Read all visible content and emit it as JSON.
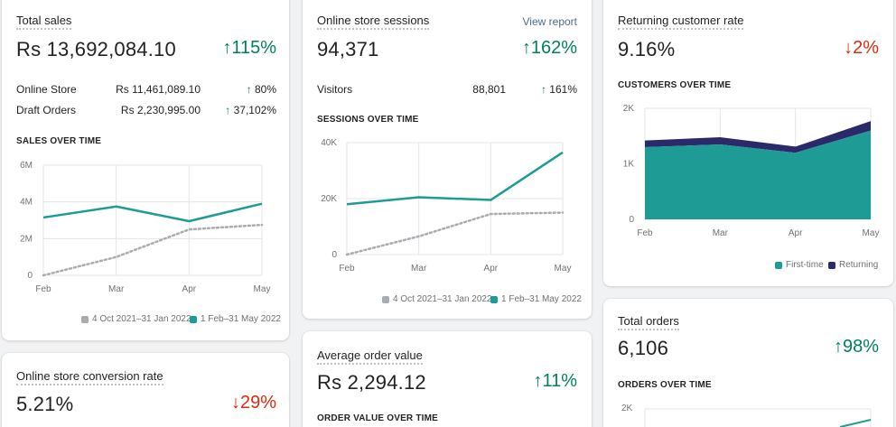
{
  "colors": {
    "accent": "#1d9b94",
    "previous": "#a7acb1",
    "returning": "#2a2a6b",
    "up": "#007f5f",
    "down": "#d72c0d"
  },
  "total_sales": {
    "title": "Total sales",
    "value": "Rs 13,692,084.10",
    "delta_arrow": "↑",
    "delta": "115%",
    "rows": [
      {
        "label": "Online Store",
        "value": "Rs 11,461,089.10",
        "arrow": "↑",
        "pct": "80%"
      },
      {
        "label": "Draft Orders",
        "value": "Rs 2,230,995.00",
        "arrow": "↑",
        "pct": "37,102%"
      }
    ],
    "chart_title": "SALES OVER TIME",
    "legend_prev": "4 Oct 2021–31 Jan 2022",
    "legend_curr": "1 Feb–31 May 2022"
  },
  "sessions": {
    "title": "Online store sessions",
    "link": "View report",
    "value": "94,371",
    "delta_arrow": "↑",
    "delta": "162%",
    "rows": [
      {
        "label": "Visitors",
        "value": "88,801",
        "arrow": "↑",
        "pct": "161%"
      }
    ],
    "chart_title": "SESSIONS OVER TIME",
    "legend_prev": "4 Oct 2021–31 Jan 2022",
    "legend_curr": "1 Feb–31 May 2022"
  },
  "returning": {
    "title": "Returning customer rate",
    "value": "9.16%",
    "delta_arrow": "↓",
    "delta": "2%",
    "chart_title": "CUSTOMERS OVER TIME",
    "legend_first": "First-time",
    "legend_returning": "Returning"
  },
  "conversion": {
    "title": "Online store conversion rate",
    "value": "5.21%",
    "delta_arrow": "↓",
    "delta": "29%"
  },
  "aov": {
    "title": "Average order value",
    "value": "Rs 2,294.12",
    "delta_arrow": "↑",
    "delta": "11%",
    "chart_title": "ORDER VALUE OVER TIME"
  },
  "orders": {
    "title": "Total orders",
    "value": "6,106",
    "delta_arrow": "↑",
    "delta": "98%",
    "chart_title": "ORDERS OVER TIME",
    "ytick_top": "2K"
  },
  "chart_data": [
    {
      "type": "line",
      "categories": [
        "Feb",
        "Mar",
        "Apr",
        "May"
      ],
      "yticks": [
        "0",
        "2M",
        "4M",
        "6M"
      ],
      "ylim": [
        0,
        6000000
      ],
      "series": [
        {
          "name": "1 Feb–31 May 2022",
          "values": [
            3150000,
            3750000,
            2950000,
            3900000
          ]
        },
        {
          "name": "4 Oct 2021–31 Jan 2022",
          "values": [
            0,
            1000000,
            2500000,
            2750000
          ]
        }
      ]
    },
    {
      "type": "line",
      "categories": [
        "Feb",
        "Mar",
        "Apr",
        "May"
      ],
      "yticks": [
        "0",
        "20K",
        "40K"
      ],
      "ylim": [
        0,
        40000
      ],
      "series": [
        {
          "name": "1 Feb–31 May 2022",
          "values": [
            18000,
            20500,
            19500,
            36500
          ]
        },
        {
          "name": "4 Oct 2021–31 Jan 2022",
          "values": [
            0,
            6500,
            14500,
            15000
          ]
        }
      ]
    },
    {
      "type": "area",
      "categories": [
        "Feb",
        "Mar",
        "Apr",
        "May"
      ],
      "yticks": [
        "0",
        "1K",
        "2K"
      ],
      "ylim": [
        0,
        2000
      ],
      "series": [
        {
          "name": "First-time",
          "values": [
            1300,
            1350,
            1200,
            1600
          ]
        },
        {
          "name": "Returning",
          "values": [
            120,
            130,
            110,
            170
          ]
        }
      ]
    }
  ]
}
